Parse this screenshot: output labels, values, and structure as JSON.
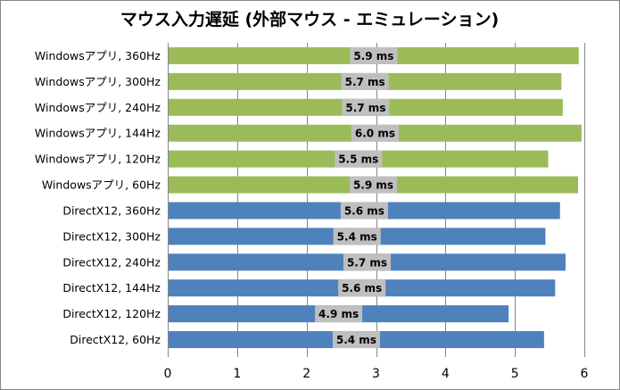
{
  "chart_data": {
    "type": "bar",
    "orientation": "horizontal",
    "title": "マウス入力遅延 (外部マウス - エミュレーション)",
    "xlabel": "",
    "ylabel": "",
    "xlim": [
      0,
      6
    ],
    "x_ticks": [
      0,
      1,
      2,
      3,
      4,
      5,
      6
    ],
    "grid": "vertical major gridlines",
    "legend": "none",
    "categories": [
      "Windowsアプリ, 360Hz",
      "Windowsアプリ, 300Hz",
      "Windowsアプリ, 240Hz",
      "Windowsアプリ, 144Hz",
      "Windowsアプリ, 120Hz",
      "Windowsアプリ, 60Hz",
      "DirectX12, 360Hz",
      "DirectX12, 300Hz",
      "DirectX12, 240Hz",
      "DirectX12, 144Hz",
      "DirectX12, 120Hz",
      "DirectX12, 60Hz"
    ],
    "values": [
      5.92,
      5.67,
      5.69,
      5.96,
      5.48,
      5.91,
      5.65,
      5.44,
      5.73,
      5.58,
      4.91,
      5.42
    ],
    "data_labels": [
      "5.9 ms",
      "5.7 ms",
      "5.7 ms",
      "6.0 ms",
      "5.5 ms",
      "5.9 ms",
      "5.6 ms",
      "5.4 ms",
      "5.7 ms",
      "5.6 ms",
      "4.9 ms",
      "5.4 ms"
    ],
    "bar_colors": [
      "#9bbb59",
      "#9bbb59",
      "#9bbb59",
      "#9bbb59",
      "#9bbb59",
      "#9bbb59",
      "#4f81bd",
      "#4f81bd",
      "#4f81bd",
      "#4f81bd",
      "#4f81bd",
      "#4f81bd"
    ],
    "data_label_background": "#bfbfbf",
    "gridline_color": "#868686"
  }
}
